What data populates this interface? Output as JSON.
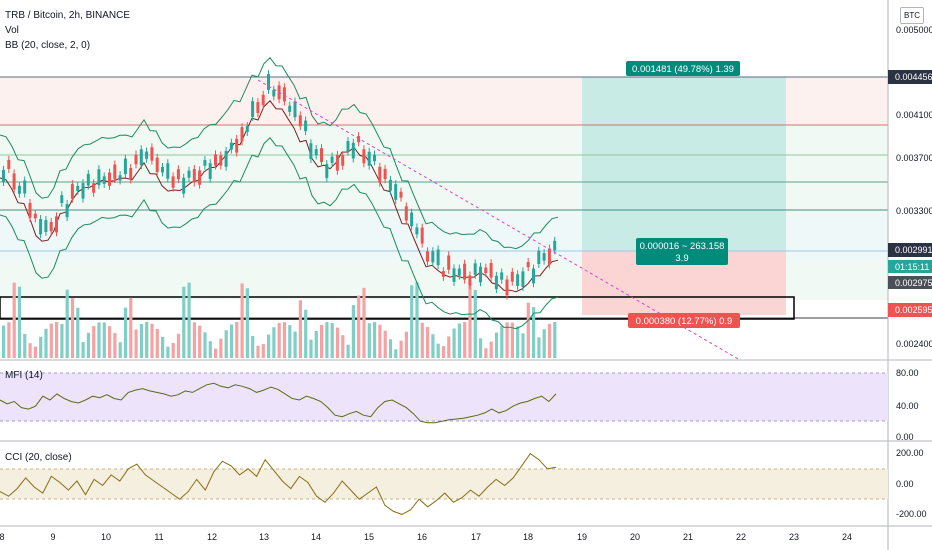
{
  "header": {
    "title": "TRB / Bitcoin, 2h, BINANCE",
    "vol_label": "Vol",
    "bb_label": "BB (20, close, 2, 0)",
    "scale_currency": "BTC"
  },
  "price_axis": {
    "ticks": [
      "0.005000",
      "0.004100",
      "0.003700",
      "0.003300",
      "0.002400"
    ],
    "tags": {
      "target": "0.004456",
      "current": "0.002991",
      "countdown": "01:15:11",
      "last": "0.002975",
      "stop": "0.002595"
    }
  },
  "position": {
    "target_label": "0.001481 (49.78%) 1.39",
    "center_label_line1": "0.000016 ~ 263.158",
    "center_label_line2": "3.9",
    "stop_label": "0.000380 (12.77%) 0.9"
  },
  "mfi": {
    "label": "MFI (14)",
    "ticks": [
      "80.00",
      "40.00",
      "0.00"
    ],
    "values": [
      50,
      45,
      48,
      40,
      38,
      42,
      55,
      50,
      58,
      52,
      48,
      46,
      50,
      55,
      53,
      57,
      52,
      50,
      60,
      63,
      65,
      62,
      60,
      58,
      55,
      57,
      62,
      60,
      65,
      70,
      72,
      68,
      66,
      70,
      68,
      65,
      60,
      63,
      67,
      64,
      58,
      52,
      50,
      55,
      52,
      48,
      40,
      30,
      28,
      32,
      35,
      30,
      28,
      40,
      48,
      50,
      45,
      40,
      32,
      22,
      20,
      20,
      22,
      24,
      25,
      26,
      28,
      30,
      33,
      38,
      33,
      36,
      42,
      46,
      48,
      52,
      55,
      48,
      58
    ]
  },
  "cci": {
    "label": "CCI (20, close)",
    "ticks": [
      "200.00",
      "0.00",
      "-200.00"
    ],
    "values": [
      -50,
      -80,
      -30,
      40,
      -20,
      -60,
      50,
      10,
      -40,
      20,
      -70,
      30,
      -10,
      60,
      20,
      100,
      130,
      60,
      20,
      -20,
      -60,
      -100,
      -50,
      30,
      -40,
      80,
      150,
      120,
      60,
      100,
      50,
      160,
      90,
      20,
      -30,
      50,
      10,
      -80,
      -120,
      -60,
      20,
      -40,
      -100,
      -60,
      -20,
      -140,
      -180,
      -200,
      -170,
      -100,
      -150,
      -110,
      -60,
      -120,
      -90,
      -40,
      -80,
      -20,
      30,
      -10,
      40,
      120,
      200,
      160,
      100,
      110
    ]
  },
  "time_axis": {
    "labels": [
      "8",
      "9",
      "10",
      "11",
      "12",
      "13",
      "14",
      "15",
      "16",
      "17",
      "18",
      "19",
      "20",
      "21",
      "22",
      "23",
      "24"
    ]
  },
  "colors": {
    "up": "#26a69a",
    "down": "#ef5350",
    "vol_up": "#7fcfc6",
    "vol_down": "#f4a3a2",
    "bb": "#1b8c5a",
    "ma": "#7b1f1f",
    "mfi": "#5a6b14",
    "cci": "#8a6d14",
    "target_fill": "#c9ebe6",
    "stop_fill": "#fbd5d4",
    "trend": "#e040d0"
  }
}
